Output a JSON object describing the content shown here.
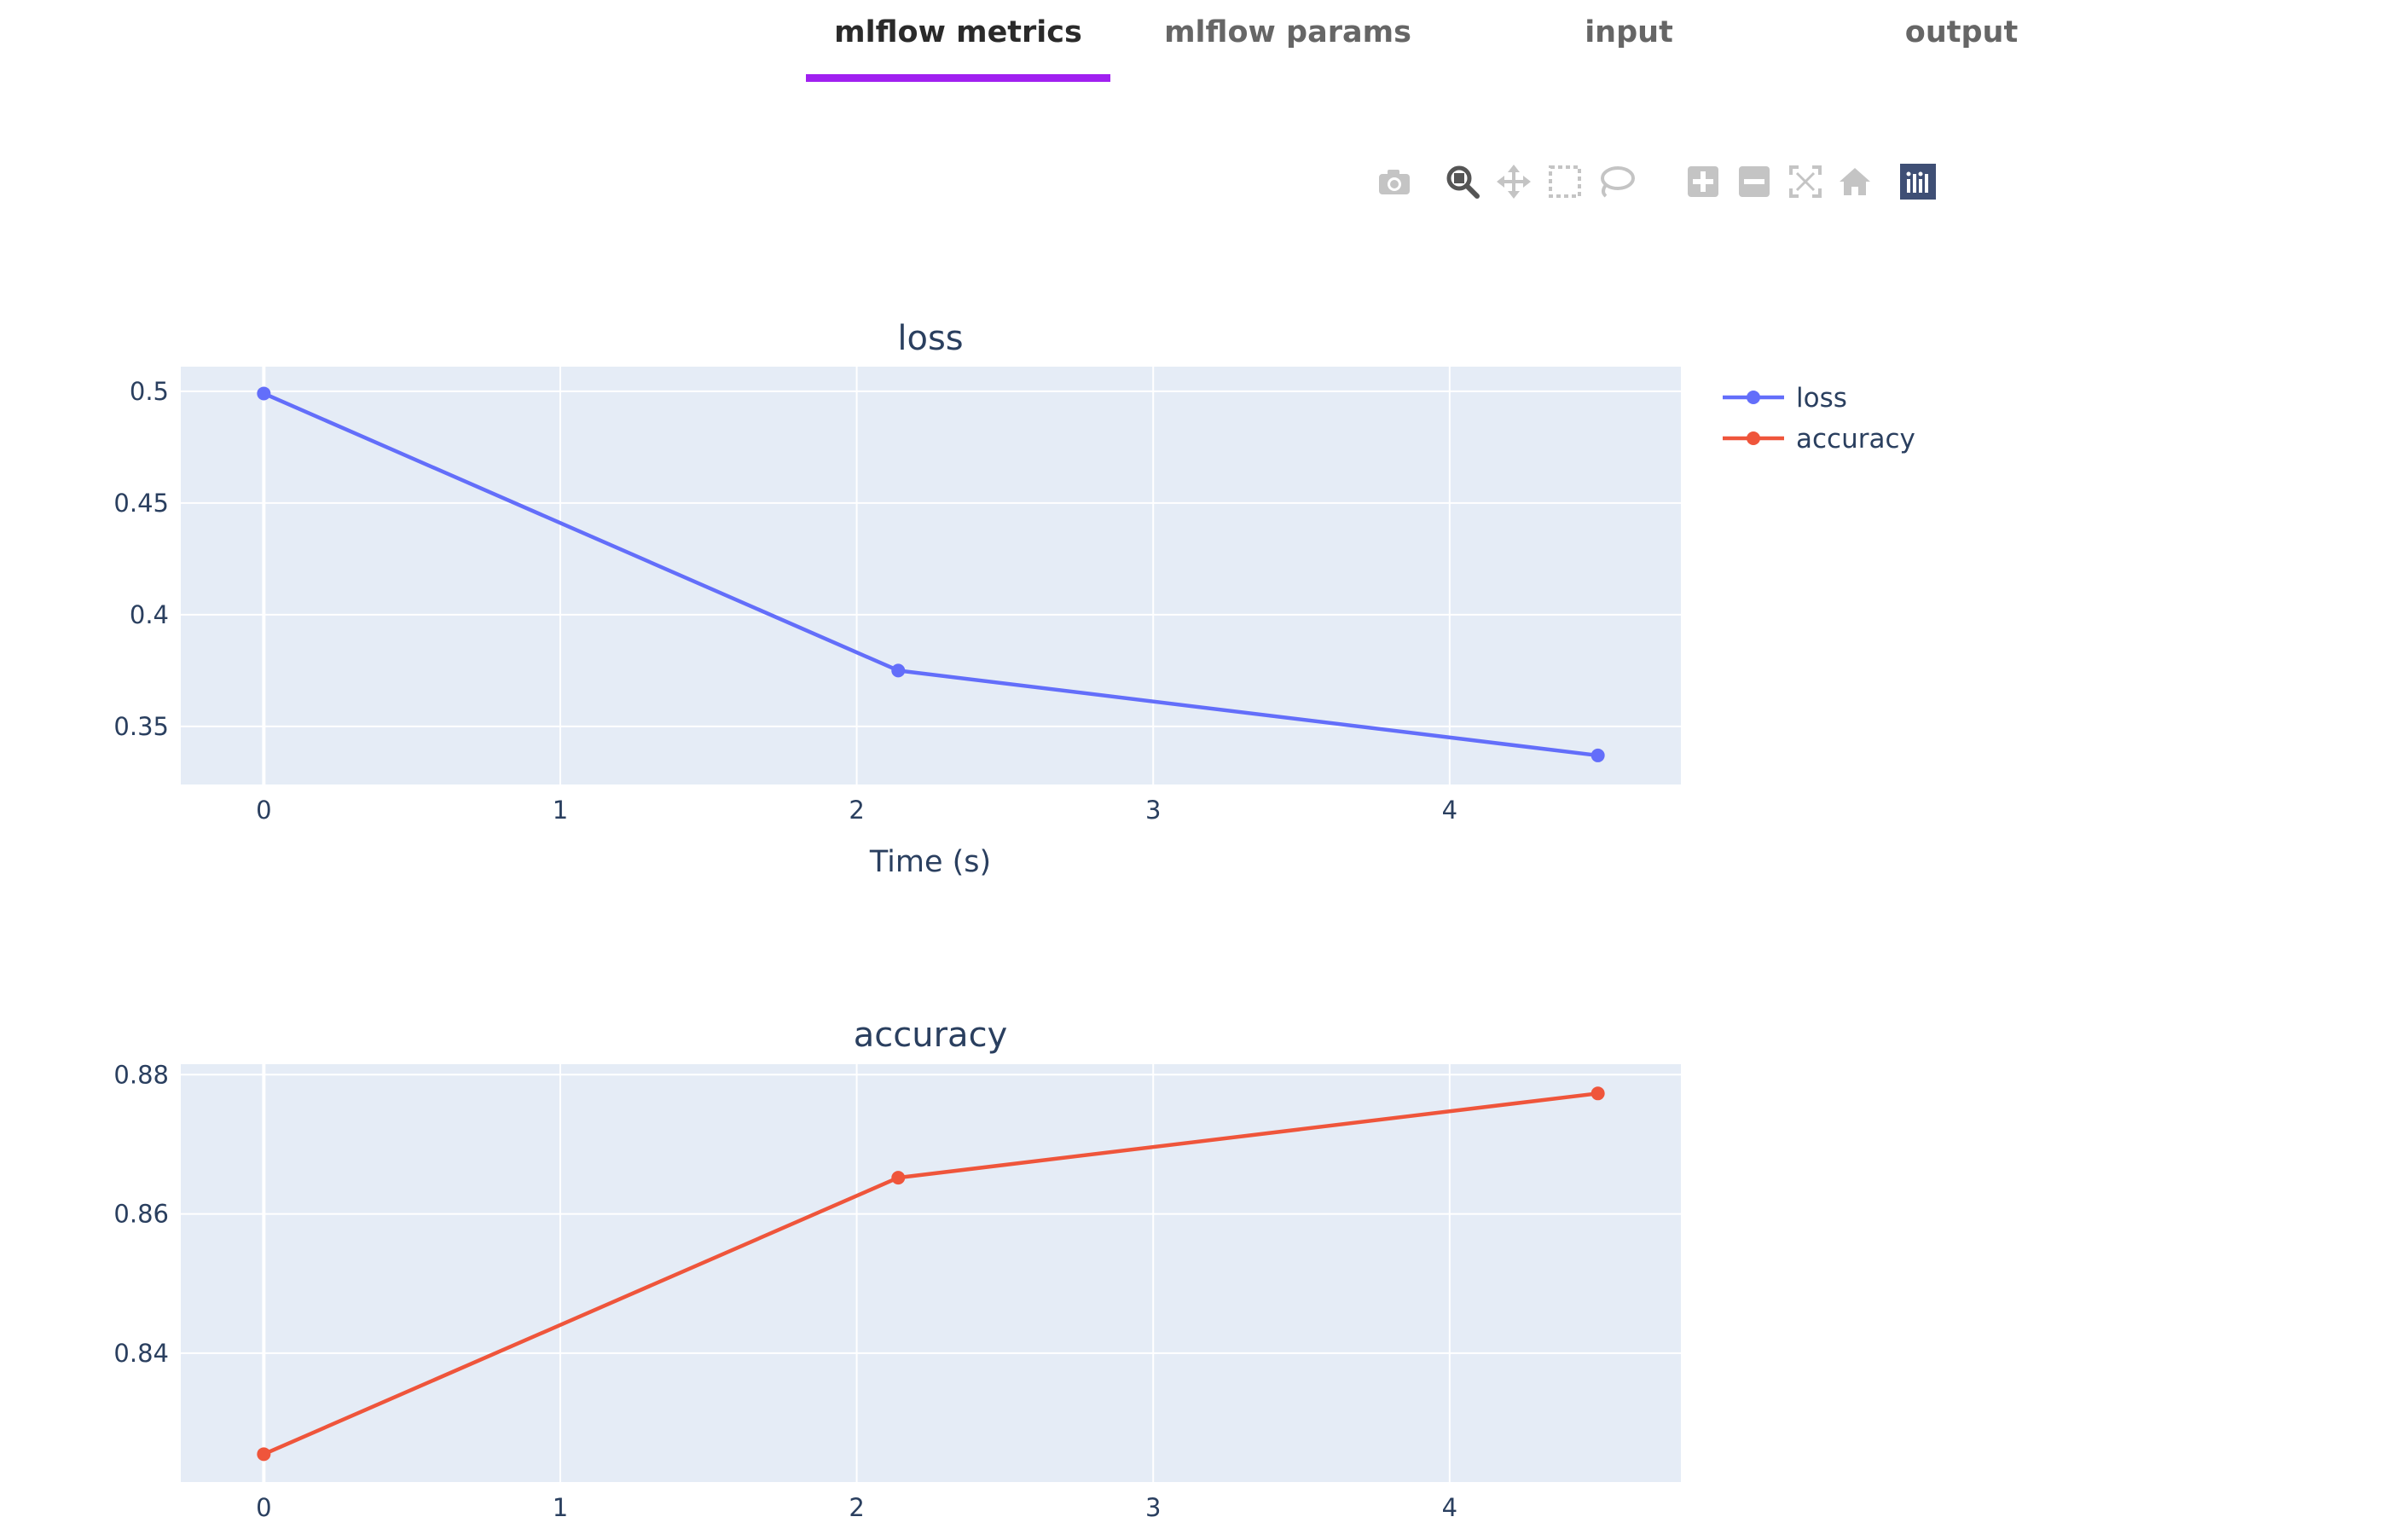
{
  "tabs": [
    {
      "label": "mlflow metrics",
      "active": true
    },
    {
      "label": "mlflow params",
      "active": false
    },
    {
      "label": "input",
      "active": false
    },
    {
      "label": "output",
      "active": false
    }
  ],
  "modebar": [
    "camera-icon",
    "zoom-icon",
    "pan-icon",
    "box-select-icon",
    "lasso-select-icon",
    "zoom-in-icon",
    "zoom-out-icon",
    "autoscale-icon",
    "home-icon",
    "plotly-logo-icon"
  ],
  "colors": {
    "loss": "#636efa",
    "accuracy": "#ef553b",
    "plot_bg": "#e5ecf6",
    "grid": "#ffffff",
    "text": "#2a3f5f",
    "tab_accent": "#a020f0"
  },
  "legend": {
    "placement": "top-right",
    "items": [
      "loss",
      "accuracy"
    ]
  },
  "chart_data": [
    {
      "type": "line",
      "title": "loss",
      "xlabel": "Time (s)",
      "ylabel": "",
      "xlim": [
        -0.28,
        4.78
      ],
      "ylim": [
        0.324,
        0.511
      ],
      "xticks": [
        0,
        1,
        2,
        3,
        4
      ],
      "yticks": [
        0.35,
        0.4,
        0.45,
        0.5
      ],
      "ytick_labels": [
        "0.35",
        "0.4",
        "0.45",
        "0.5"
      ],
      "grid": true,
      "series": [
        {
          "name": "loss",
          "x": [
            0,
            2.14,
            4.5
          ],
          "y": [
            0.499,
            0.375,
            0.337
          ]
        }
      ]
    },
    {
      "type": "line",
      "title": "accuracy",
      "xlabel": "",
      "ylabel": "",
      "xlim": [
        -0.28,
        4.78
      ],
      "ylim": [
        0.8215,
        0.8815
      ],
      "xticks": [
        0,
        1,
        2,
        3,
        4
      ],
      "yticks": [
        0.84,
        0.86,
        0.88
      ],
      "ytick_labels": [
        "0.84",
        "0.86",
        "0.88"
      ],
      "grid": true,
      "series": [
        {
          "name": "accuracy",
          "x": [
            0,
            2.14,
            4.5
          ],
          "y": [
            0.8255,
            0.8652,
            0.8773
          ]
        }
      ]
    }
  ]
}
